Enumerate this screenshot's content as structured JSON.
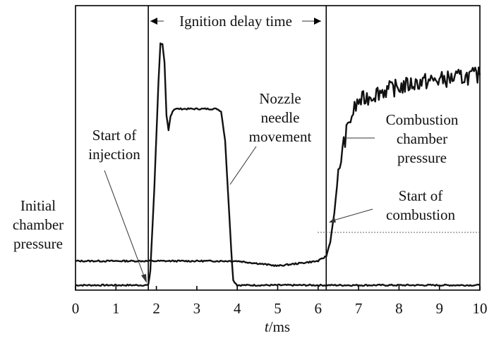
{
  "chart_data": {
    "type": "line",
    "xlabel_italic": "t",
    "xlabel_unit": "/ms",
    "xlim": [
      0,
      10
    ],
    "ticks": [
      "0",
      "1",
      "2",
      "3",
      "4",
      "5",
      "6",
      "7",
      "8",
      "9",
      "10"
    ],
    "markers": {
      "start_of_injection": 1.8,
      "start_of_combustion": 6.2
    },
    "annotations": {
      "ignition_delay": "Ignition delay time",
      "injection": [
        "Start of",
        "injection"
      ],
      "needle": [
        "Nozzle",
        "needle",
        "movement"
      ],
      "combustion_pressure": [
        "Combustion",
        "chamber",
        "pressure"
      ],
      "start_combustion": [
        "Start of",
        "combustion"
      ],
      "initial_pressure": [
        "Initial",
        "chamber",
        "pressure"
      ]
    },
    "series": [
      {
        "x": [
          0,
          1.7,
          1.8,
          1.85,
          1.95,
          2.05,
          2.1,
          2.15,
          2.2,
          2.25,
          2.3,
          2.35,
          2.4,
          2.45,
          2.5,
          2.6,
          3.0,
          3.5,
          3.6,
          3.7,
          3.8,
          3.85,
          3.9,
          4.0,
          6.0,
          8.0,
          10.0
        ],
        "y": [
          0.0,
          0.0,
          0.0,
          0.06,
          0.4,
          0.84,
          1.0,
          1.0,
          0.92,
          0.7,
          0.64,
          0.7,
          0.72,
          0.73,
          0.73,
          0.73,
          0.73,
          0.73,
          0.72,
          0.6,
          0.3,
          0.15,
          0.02,
          0.0,
          0.0,
          0.0,
          0.0
        ]
      },
      {
        "x": [
          0,
          1.8,
          2.2,
          2.5,
          3.0,
          3.5,
          4.0,
          4.5,
          5.0,
          5.5,
          6.0,
          6.2,
          6.3,
          6.4,
          6.5,
          6.6,
          6.7,
          6.8,
          6.9,
          7.0,
          7.5,
          8.0,
          8.5,
          9.0,
          9.5,
          10.0
        ],
        "y": [
          0.1,
          0.1,
          0.1,
          0.1,
          0.1,
          0.1,
          0.1,
          0.09,
          0.08,
          0.09,
          0.1,
          0.12,
          0.18,
          0.3,
          0.46,
          0.56,
          0.63,
          0.69,
          0.73,
          0.76,
          0.8,
          0.82,
          0.84,
          0.85,
          0.86,
          0.87
        ]
      }
    ]
  }
}
